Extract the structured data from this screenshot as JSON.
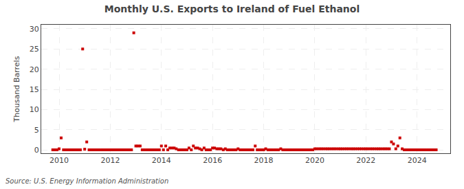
{
  "chart_data": {
    "type": "scatter",
    "title": "Monthly U.S. Exports to Ireland of Fuel Ethanol",
    "ylabel": "Thousand Barrels",
    "annotations": [
      "Source: U.S. Energy Information Administration"
    ],
    "color": "#cc0000",
    "marker": "square",
    "grid": true,
    "xlim": [
      2009.3,
      2025.3
    ],
    "xticks": [
      2010,
      2012,
      2014,
      2016,
      2018,
      2020,
      2022,
      2024
    ],
    "ylim": [
      -0.8,
      31
    ],
    "yticks": [
      0,
      5,
      10,
      15,
      20,
      25,
      30
    ],
    "x": [
      2009.75,
      2009.83,
      2009.92,
      2010.0,
      2010.08,
      2010.17,
      2010.25,
      2010.33,
      2010.42,
      2010.5,
      2010.58,
      2010.67,
      2010.75,
      2010.83,
      2010.92,
      2011.0,
      2011.08,
      2011.17,
      2011.25,
      2011.33,
      2011.42,
      2011.5,
      2011.58,
      2011.67,
      2011.75,
      2011.83,
      2011.92,
      2012.0,
      2012.08,
      2012.17,
      2012.25,
      2012.33,
      2012.42,
      2012.5,
      2012.58,
      2012.67,
      2012.75,
      2012.83,
      2012.92,
      2013.0,
      2013.08,
      2013.17,
      2013.25,
      2013.33,
      2013.42,
      2013.5,
      2013.58,
      2013.67,
      2013.75,
      2013.83,
      2013.92,
      2014.0,
      2014.08,
      2014.17,
      2014.25,
      2014.33,
      2014.42,
      2014.5,
      2014.58,
      2014.67,
      2014.75,
      2014.83,
      2014.92,
      2015.0,
      2015.08,
      2015.17,
      2015.25,
      2015.33,
      2015.42,
      2015.5,
      2015.58,
      2015.67,
      2015.75,
      2015.83,
      2015.92,
      2016.0,
      2016.08,
      2016.17,
      2016.25,
      2016.33,
      2016.42,
      2016.5,
      2016.58,
      2016.67,
      2016.75,
      2016.83,
      2016.92,
      2017.0,
      2017.08,
      2017.17,
      2017.25,
      2017.33,
      2017.42,
      2017.5,
      2017.58,
      2017.67,
      2017.75,
      2017.83,
      2017.92,
      2018.0,
      2018.08,
      2018.17,
      2018.25,
      2018.33,
      2018.42,
      2018.5,
      2018.58,
      2018.67,
      2018.75,
      2018.83,
      2018.92,
      2019.0,
      2019.08,
      2019.17,
      2019.25,
      2019.33,
      2019.42,
      2019.5,
      2019.58,
      2019.67,
      2019.75,
      2019.83,
      2019.92,
      2020.0,
      2020.08,
      2020.17,
      2020.25,
      2020.33,
      2020.42,
      2020.5,
      2020.58,
      2020.67,
      2020.75,
      2020.83,
      2020.92,
      2021.0,
      2021.08,
      2021.17,
      2021.25,
      2021.33,
      2021.42,
      2021.5,
      2021.58,
      2021.67,
      2021.75,
      2021.83,
      2021.92,
      2022.0,
      2022.08,
      2022.17,
      2022.25,
      2022.33,
      2022.42,
      2022.5,
      2022.58,
      2022.67,
      2022.75,
      2022.83,
      2022.92,
      2023.0,
      2023.08,
      2023.17,
      2023.25,
      2023.33,
      2023.42,
      2023.5,
      2023.58,
      2023.67,
      2023.75,
      2023.83,
      2023.92,
      2024.0,
      2024.08,
      2024.17,
      2024.25,
      2024.33,
      2024.42,
      2024.5,
      2024.58,
      2024.67,
      2024.75
    ],
    "values": [
      0.05,
      0.05,
      0.05,
      0.3,
      3.0,
      0.05,
      0.05,
      0.05,
      0.05,
      0.05,
      0.05,
      0.05,
      0.05,
      0.05,
      25.0,
      0.2,
      2.0,
      0.05,
      0.05,
      0.05,
      0.05,
      0.05,
      0.05,
      0.05,
      0.05,
      0.05,
      0.05,
      0.05,
      0.05,
      0.05,
      0.05,
      0.05,
      0.05,
      0.05,
      0.05,
      0.05,
      0.05,
      0.05,
      29.0,
      1.0,
      1.0,
      1.0,
      0.05,
      0.05,
      0.05,
      0.05,
      0.05,
      0.05,
      0.05,
      0.05,
      0.05,
      1.0,
      0.05,
      1.0,
      0.05,
      0.5,
      0.5,
      0.5,
      0.3,
      0.05,
      0.05,
      0.05,
      0.05,
      0.05,
      0.5,
      0.05,
      1.0,
      0.5,
      0.5,
      0.3,
      0.05,
      0.5,
      0.05,
      0.05,
      0.05,
      0.5,
      0.5,
      0.3,
      0.3,
      0.3,
      0.05,
      0.3,
      0.05,
      0.05,
      0.05,
      0.05,
      0.05,
      0.3,
      0.05,
      0.05,
      0.05,
      0.05,
      0.05,
      0.05,
      0.05,
      1.0,
      0.05,
      0.05,
      0.05,
      0.05,
      0.3,
      0.05,
      0.05,
      0.05,
      0.05,
      0.05,
      0.05,
      0.3,
      0.05,
      0.05,
      0.05,
      0.05,
      0.05,
      0.05,
      0.05,
      0.05,
      0.05,
      0.05,
      0.05,
      0.05,
      0.05,
      0.05,
      0.05,
      0.3,
      0.3,
      0.3,
      0.3,
      0.3,
      0.3,
      0.3,
      0.3,
      0.3,
      0.3,
      0.3,
      0.3,
      0.3,
      0.3,
      0.3,
      0.3,
      0.3,
      0.3,
      0.3,
      0.3,
      0.3,
      0.3,
      0.3,
      0.3,
      0.3,
      0.3,
      0.3,
      0.3,
      0.3,
      0.3,
      0.3,
      0.3,
      0.3,
      0.3,
      0.3,
      0.3,
      2.0,
      1.5,
      0.3,
      1.0,
      3.0,
      0.3,
      0.05,
      0.05,
      0.05,
      0.05,
      0.05,
      0.05,
      0.05,
      0.05,
      0.05,
      0.05,
      0.05,
      0.05,
      0.05,
      0.05,
      0.05,
      0.05
    ]
  }
}
